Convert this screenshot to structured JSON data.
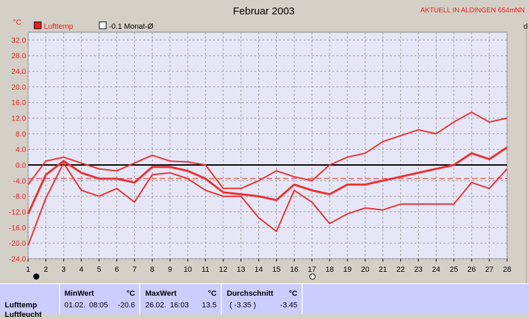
{
  "chart_data": {
    "type": "line",
    "title": "Februar 2003",
    "station": "AKTUELL IN ALDINGEN 654mNN",
    "ylabel": "°C",
    "edge_label": "d",
    "legend": [
      {
        "label": "Lufttemp",
        "style": "filled",
        "color": "#e82020"
      },
      {
        "label": "-0.1 Monat-Ø",
        "style": "hollow",
        "color": "#000000"
      }
    ],
    "ylim": [
      -24,
      34
    ],
    "yticks": [
      "32.0",
      "28.0",
      "24.0",
      "20.0",
      "16.0",
      "12.0",
      "8.0",
      "4.0",
      "0.0",
      "-4.0",
      "-8.0",
      "-12.0",
      "-16.0",
      "-20.0",
      "-24.0"
    ],
    "ytick_values": [
      32,
      28,
      24,
      20,
      16,
      12,
      8,
      4,
      0,
      -4,
      -8,
      -12,
      -16,
      -20,
      -24
    ],
    "x": [
      1,
      2,
      3,
      4,
      5,
      6,
      7,
      8,
      9,
      10,
      11,
      12,
      13,
      14,
      15,
      16,
      17,
      18,
      19,
      20,
      21,
      22,
      23,
      24,
      25,
      26,
      27,
      28
    ],
    "grid": true,
    "reference_line": -3.45,
    "series": [
      {
        "name": "max",
        "values": [
          -5,
          1,
          2,
          0.5,
          -1,
          -1.5,
          0.5,
          2.5,
          1,
          0.8,
          0,
          -6,
          -6,
          -4,
          -1.5,
          -3,
          -4,
          0,
          2,
          3,
          6,
          7.5,
          9,
          8,
          11,
          13.5,
          11,
          12
        ]
      },
      {
        "name": "mittel",
        "values": [
          -12.5,
          -2.5,
          1,
          -2,
          -3.5,
          -3.5,
          -4.5,
          -0.5,
          -0.5,
          -1.5,
          -3.5,
          -7,
          -7.5,
          -8,
          -9,
          -5,
          -6.5,
          -7.5,
          -5,
          -5,
          -4,
          -3,
          -2,
          -1,
          0,
          3,
          1.5,
          4.5
        ]
      },
      {
        "name": "min",
        "values": [
          -20.6,
          -8.5,
          0.5,
          -6.5,
          -8,
          -6,
          -9.5,
          -2.5,
          -2,
          -3.5,
          -6.5,
          -8,
          -8,
          -13.5,
          -17,
          -6.5,
          -9.5,
          -15,
          -12.5,
          -11,
          -11.5,
          -10,
          -10,
          -10,
          -10,
          -4.5,
          -6,
          -1
        ]
      }
    ]
  },
  "stats": {
    "row_label": "Lufttemp",
    "row_label_2": "Luftfeucht",
    "min": {
      "header": "MinWert",
      "unit": "°C",
      "date": "01.02.",
      "time": "08:05",
      "value": "-20.6"
    },
    "max": {
      "header": "MaxWert",
      "unit": "°C",
      "date": "26.02.",
      "time": "16:03",
      "value": "13.5"
    },
    "avg": {
      "header": "Durchschnitt",
      "unit": "°C",
      "value_paren": "( -3.35 )",
      "value": "-3.45"
    }
  }
}
